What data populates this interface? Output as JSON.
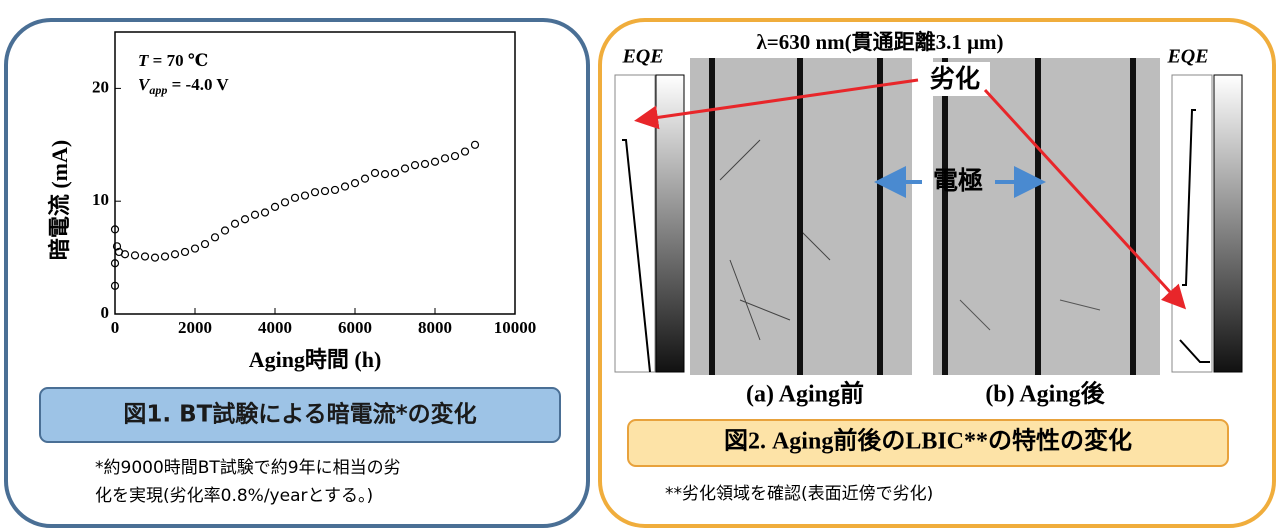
{
  "chart_data": {
    "type": "scatter",
    "xlabel": "Aging時間 (h)",
    "ylabel": "暗電流 (mA)",
    "annotations": [
      [
        "T",
        " = 70 ℃"
      ],
      [
        "V",
        "app",
        " = -4.0 V"
      ]
    ],
    "xlim": [
      0,
      10000
    ],
    "xticks": [
      0,
      2000,
      4000,
      6000,
      8000,
      10000
    ],
    "ylim": [
      0,
      25
    ],
    "yticks": [
      0,
      10,
      20
    ],
    "color": "#000000",
    "x": [
      0,
      0,
      0,
      50,
      100,
      250,
      500,
      750,
      1000,
      1250,
      1500,
      1750,
      2000,
      2250,
      2500,
      2750,
      3000,
      3250,
      3500,
      3750,
      4000,
      4250,
      4500,
      4750,
      5000,
      5250,
      5500,
      5750,
      6000,
      6250,
      6500,
      6750,
      7000,
      7250,
      7500,
      7750,
      8000,
      8250,
      8500,
      8750,
      9000
    ],
    "values": [
      7.5,
      2.5,
      4.5,
      6,
      5.5,
      5.3,
      5.2,
      5.1,
      5,
      5.1,
      5.3,
      5.5,
      5.8,
      6.2,
      6.8,
      7.4,
      8,
      8.4,
      8.8,
      9,
      9.5,
      9.9,
      10.3,
      10.5,
      10.8,
      10.9,
      11,
      11.3,
      11.6,
      12,
      12.5,
      12.4,
      12.5,
      12.9,
      13.2,
      13.3,
      13.5,
      13.8,
      14,
      14.4,
      15
    ]
  },
  "left": {
    "caption": "図1. BT試験による暗電流*の変化",
    "note": [
      "*約9000時間BT試験で約9年に相当の劣",
      "化を実現(劣化率0.8%/yearとする。)"
    ]
  },
  "right": {
    "heading": "λ=630 nm(貫通距離3.1 μm)",
    "degradation": "劣化",
    "electrode": "電極",
    "eqe_left": "EQE",
    "eqe_right": "EQE",
    "label_a": "(a) Aging前",
    "label_b": "(b) Aging後",
    "caption": "図2. Aging前後のLBIC**の特性の変化",
    "note": "**劣化領域を確認(表面近傍で劣化)"
  }
}
